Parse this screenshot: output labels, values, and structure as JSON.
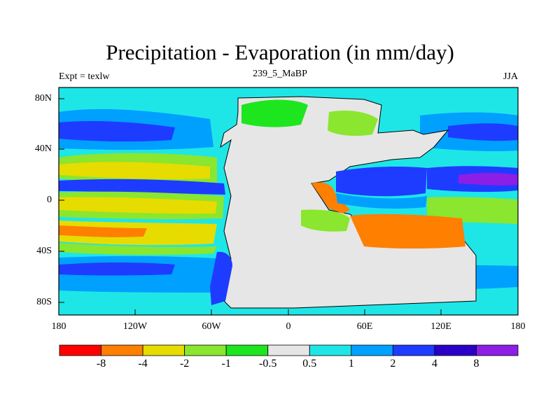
{
  "title": "Precipitation - Evaporation (in mm/day)",
  "left_label": "Expt = texlw",
  "center_label": "239_5_MaBP",
  "right_label": "JJA",
  "y_ticks": [
    "80N",
    "40N",
    "0",
    "40S",
    "80S"
  ],
  "x_ticks": [
    "180",
    "120W",
    "60W",
    "0",
    "60E",
    "120E",
    "180"
  ],
  "colorbar": {
    "labels": [
      "-8",
      "-4",
      "-2",
      "-1",
      "-0.5",
      "0.5",
      "1",
      "2",
      "4",
      "8"
    ],
    "colors": [
      "#ff0000",
      "#ff7f00",
      "#e6dc00",
      "#8ae62e",
      "#1ee61e",
      "#e6e6e6",
      "#1ee6e6",
      "#00a0ff",
      "#1e3cff",
      "#2a00c8",
      "#8c1ee6"
    ]
  },
  "colors": {
    "land": "#e6e6e6",
    "ocean_base": "#1ee6e6",
    "wet_light": "#00a0ff",
    "wet_mid": "#1e3cff",
    "wet_strong": "#2a00c8",
    "wet_max": "#8c1ee6",
    "dry_light": "#1ee61e",
    "dry_mid": "#8ae62e",
    "dry_strong": "#e6dc00",
    "dry_max": "#ff7f00",
    "dry_extreme": "#ff0000"
  }
}
